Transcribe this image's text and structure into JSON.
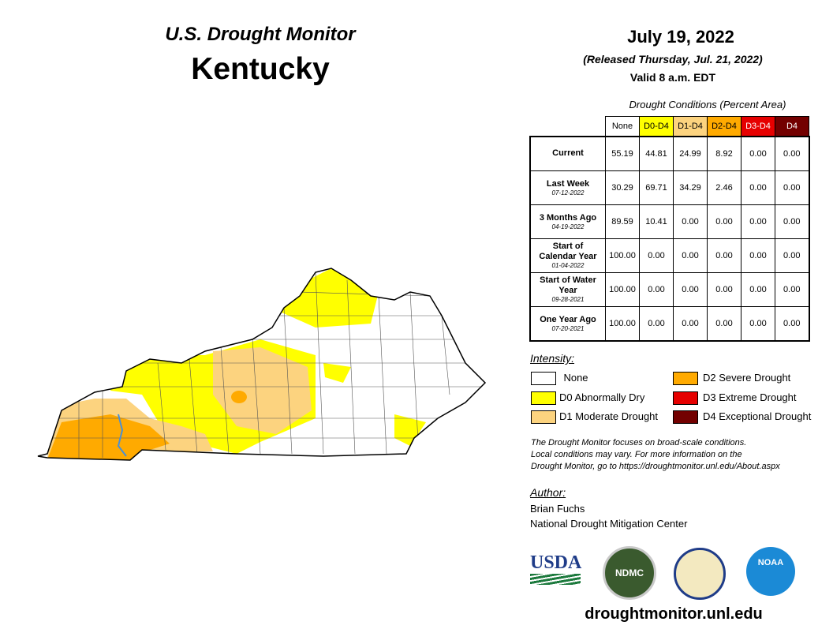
{
  "header": {
    "title": "U.S. Drought Monitor",
    "state": "Kentucky",
    "date": "July 19, 2022",
    "released": "(Released Thursday, Jul. 21, 2022)",
    "valid": "Valid 8 a.m. EDT"
  },
  "table": {
    "caption": "Drought Conditions (Percent Area)",
    "columns": [
      {
        "label": "None",
        "color": "#ffffff",
        "text_color": "#000000"
      },
      {
        "label": "D0-D4",
        "color": "#ffff00",
        "text_color": "#000000"
      },
      {
        "label": "D1-D4",
        "color": "#fcd37f",
        "text_color": "#000000"
      },
      {
        "label": "D2-D4",
        "color": "#ffaa00",
        "text_color": "#000000"
      },
      {
        "label": "D3-D4",
        "color": "#e60000",
        "text_color": "#ffffff"
      },
      {
        "label": "D4",
        "color": "#730000",
        "text_color": "#ffffff"
      }
    ],
    "rows": [
      {
        "label": "Current",
        "values": [
          "55.19",
          "44.81",
          "24.99",
          "8.92",
          "0.00",
          "0.00"
        ]
      },
      {
        "label": "Last Week",
        "date": "07-12-2022",
        "values": [
          "30.29",
          "69.71",
          "34.29",
          "2.46",
          "0.00",
          "0.00"
        ]
      },
      {
        "label": "3 Months Ago",
        "date": "04-19-2022",
        "values": [
          "89.59",
          "10.41",
          "0.00",
          "0.00",
          "0.00",
          "0.00"
        ]
      },
      {
        "label": "Start of Calendar Year",
        "date": "01-04-2022",
        "values": [
          "100.00",
          "0.00",
          "0.00",
          "0.00",
          "0.00",
          "0.00"
        ]
      },
      {
        "label": "Start of Water Year",
        "date": "09-28-2021",
        "values": [
          "100.00",
          "0.00",
          "0.00",
          "0.00",
          "0.00",
          "0.00"
        ]
      },
      {
        "label": "One Year Ago",
        "date": "07-20-2021",
        "values": [
          "100.00",
          "0.00",
          "0.00",
          "0.00",
          "0.00",
          "0.00"
        ]
      }
    ]
  },
  "legend": {
    "title": "Intensity:",
    "items": [
      {
        "label": "None",
        "color": "#ffffff"
      },
      {
        "label": "D0 Abnormally Dry",
        "color": "#ffff00"
      },
      {
        "label": "D1 Moderate Drought",
        "color": "#fcd37f"
      },
      {
        "label": "D2 Severe Drought",
        "color": "#ffaa00"
      },
      {
        "label": "D3 Extreme Drought",
        "color": "#e60000"
      },
      {
        "label": "D4 Exceptional Drought",
        "color": "#730000"
      }
    ]
  },
  "note": [
    "The Drought Monitor focuses on broad-scale conditions.",
    "Local conditions may vary. For more information on the",
    "Drought Monitor, go to https://droughtmonitor.unl.edu/About.aspx"
  ],
  "author": {
    "heading": "Author:",
    "name": "Brian Fuchs",
    "organization": "National Drought Mitigation Center"
  },
  "logos": [
    "USDA",
    "NDMC",
    "NOAA"
  ],
  "url": "droughtmonitor.unl.edu"
}
